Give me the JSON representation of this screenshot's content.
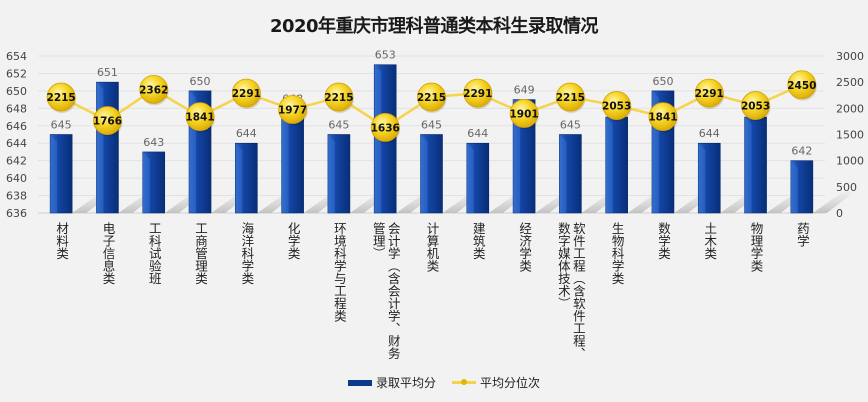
{
  "chart_data": {
    "type": "bar",
    "title": "2020年重庆市理科普通类本科生录取情况",
    "categories": [
      "材料类",
      "电子信息类",
      "工科试验班",
      "工商管理类",
      "海洋科学类",
      "化学类",
      "环境科学与工程类",
      "会计学（含会计学、财务管理）",
      "计算机类",
      "建筑类",
      "经济学类",
      "软件工程（含软件工程、数字媒体技术）",
      "生物科学类",
      "数学类",
      "土木类",
      "物理学类",
      "药学"
    ],
    "category_lines": [
      [
        "材料类"
      ],
      [
        "电子信息类"
      ],
      [
        "工科试验班"
      ],
      [
        "工商管理类"
      ],
      [
        "海洋科学类"
      ],
      [
        "化学类"
      ],
      [
        "环境科学与工程类"
      ],
      [
        "会计学（含会计学、财务",
        "管理）"
      ],
      [
        "计算机类"
      ],
      [
        "建筑类"
      ],
      [
        "经济学类"
      ],
      [
        "软件工程（含软件工程、",
        "数字媒体技术）"
      ],
      [
        "生物科学类"
      ],
      [
        "数学类"
      ],
      [
        "土木类"
      ],
      [
        "物理学类"
      ],
      [
        "药学"
      ]
    ],
    "series": [
      {
        "name": "录取平均分",
        "type": "bar",
        "axis": "left",
        "color": "#0b3a8c",
        "values": [
          645,
          651,
          643,
          650,
          644,
          648,
          645,
          653,
          645,
          644,
          649,
          645,
          647,
          650,
          644,
          647,
          642
        ]
      },
      {
        "name": "平均分位次",
        "type": "line",
        "axis": "right",
        "color": "#f5d34a",
        "marker_color": "#f2c300",
        "values": [
          2215,
          1766,
          2362,
          1841,
          2291,
          1977,
          2215,
          1636,
          2215,
          2291,
          1901,
          2215,
          2053,
          1841,
          2291,
          2053,
          2450
        ]
      }
    ],
    "y_left": {
      "min": 636,
      "max": 654,
      "step": 2,
      "ticks": [
        "636",
        "638",
        "640",
        "642",
        "644",
        "646",
        "648",
        "650",
        "652",
        "654"
      ]
    },
    "y_right": {
      "min": 0,
      "max": 3000,
      "step": 500,
      "ticks": [
        "0",
        "500",
        "1000",
        "1500",
        "2000",
        "2500",
        "3000"
      ]
    },
    "grid": true,
    "legend_position": "bottom"
  },
  "legend": {
    "bar_label": "录取平均分",
    "line_label": "平均分位次"
  }
}
